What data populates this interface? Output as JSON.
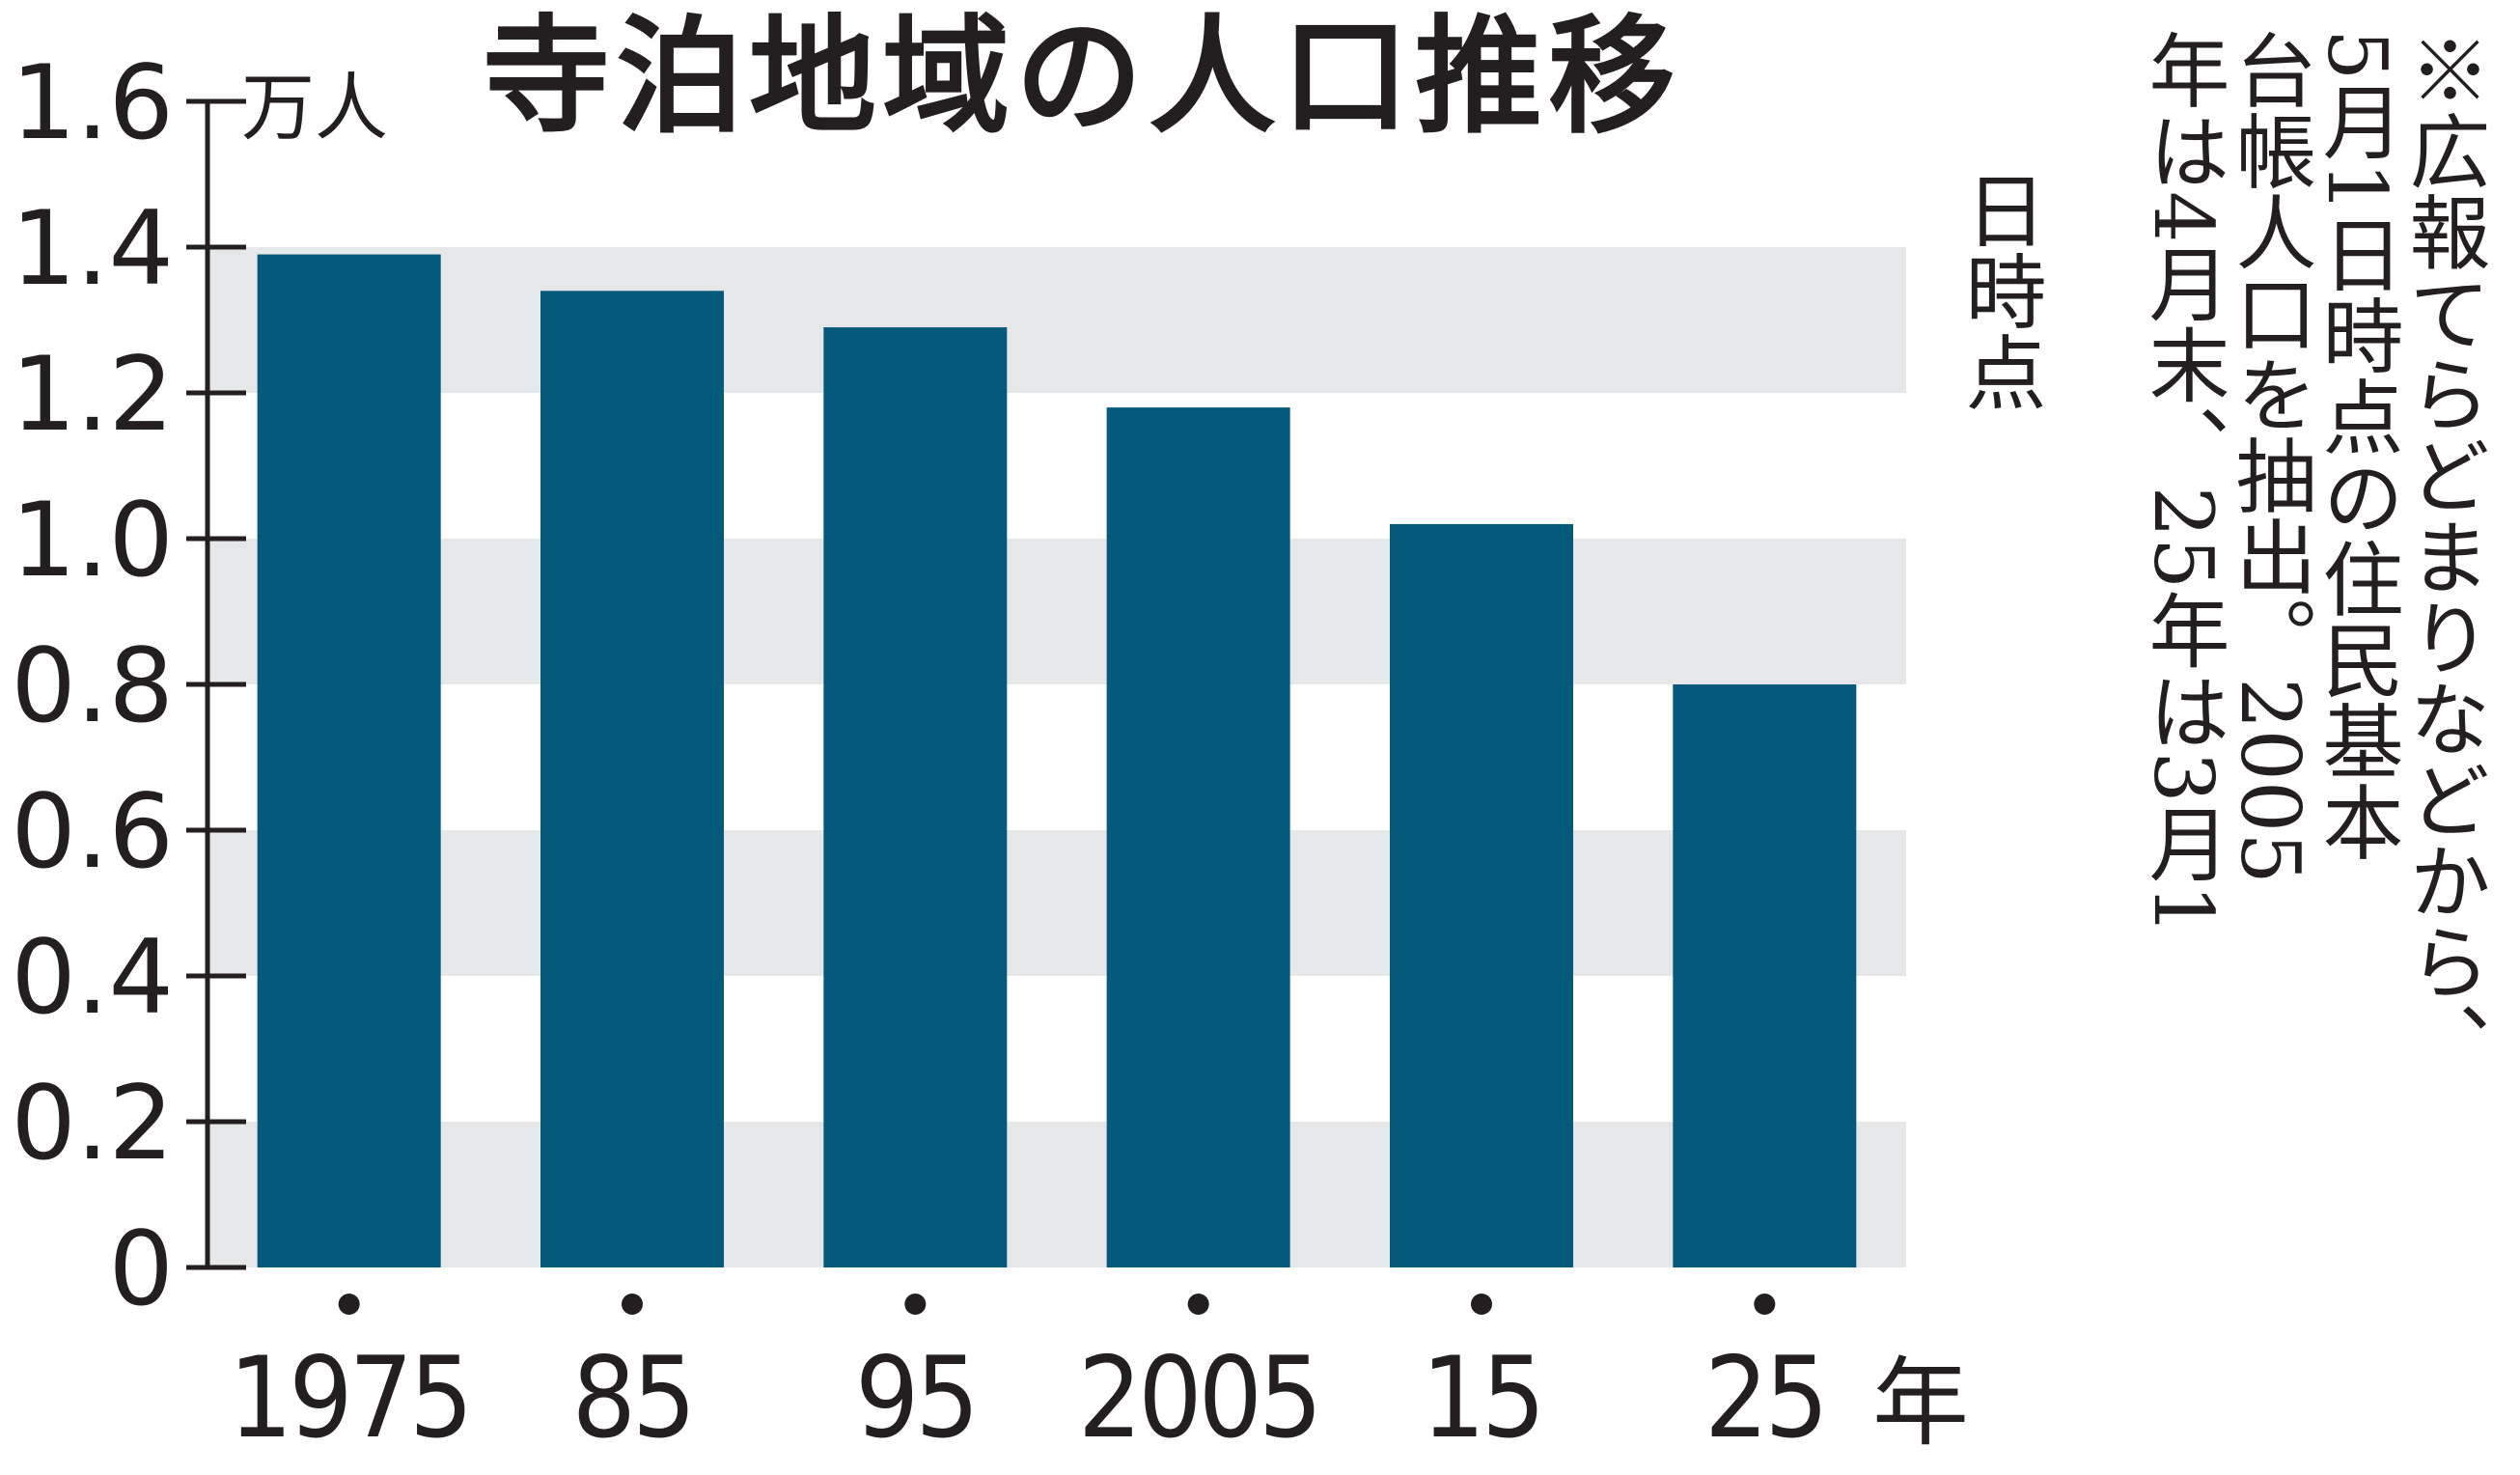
{
  "chart_data": {
    "type": "bar",
    "title": "寺泊地域の人口推移",
    "ylabel": "万人",
    "xlabel": "年",
    "categories": [
      "1975",
      "85",
      "95",
      "2005",
      "15",
      "25"
    ],
    "values": [
      1.39,
      1.34,
      1.29,
      1.18,
      1.02,
      0.8
    ],
    "y_ticks": [
      "0",
      "0.2",
      "0.4",
      "0.6",
      "0.8",
      "1.0",
      "1.2",
      "1.4",
      "1.6"
    ],
    "ylim": [
      0,
      1.6
    ],
    "grid": "alternating-bands",
    "legend": "none"
  },
  "note_lines": [
    "※広報てらどまりなどから、",
    "5月1日時点の住民基本",
    "台帳人口を抽出。2005",
    "年は4月末、25年は3月1",
    "日時点"
  ],
  "colors": {
    "bar": "#035a7b",
    "band": "#e6e7e9",
    "axis": "#231f20",
    "text": "#231f20"
  }
}
